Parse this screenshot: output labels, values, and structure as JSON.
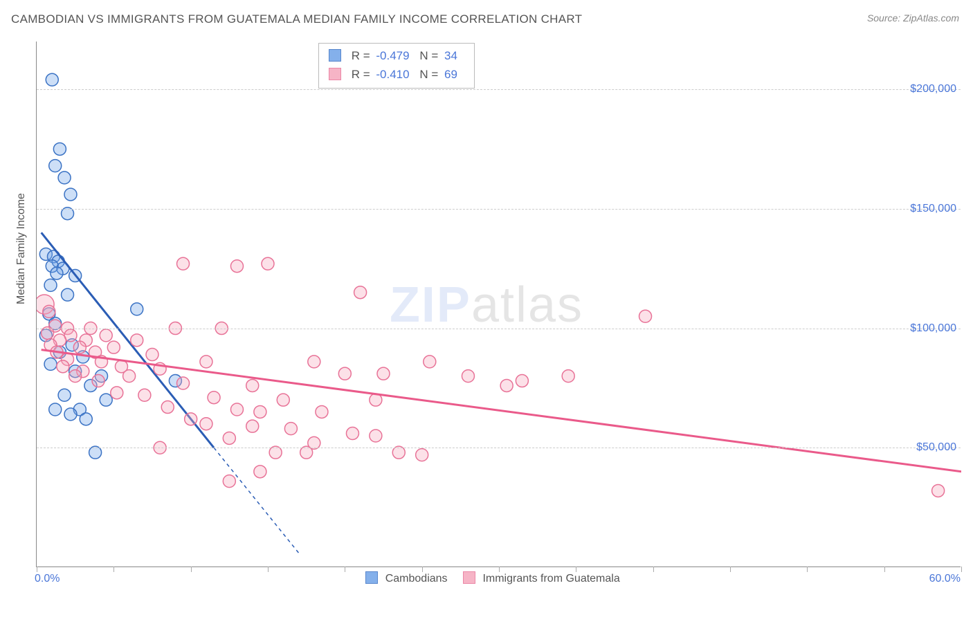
{
  "title": "CAMBODIAN VS IMMIGRANTS FROM GUATEMALA MEDIAN FAMILY INCOME CORRELATION CHART",
  "source": "Source: ZipAtlas.com",
  "y_axis_title": "Median Family Income",
  "watermark_zip": "ZIP",
  "watermark_atlas": "atlas",
  "x_min_label": "0.0%",
  "x_max_label": "60.0%",
  "chart": {
    "type": "scatter",
    "background_color": "#ffffff",
    "grid_color": "#cccccc",
    "axis_color": "#888888",
    "text_color": "#555555",
    "value_color": "#4a76d8",
    "xlim": [
      0,
      60
    ],
    "ylim": [
      0,
      220000
    ],
    "y_ticks": [
      50000,
      100000,
      150000,
      200000
    ],
    "y_tick_labels": [
      "$50,000",
      "$100,000",
      "$150,000",
      "$200,000"
    ],
    "x_tick_step": 5,
    "marker_radius": 9,
    "marker_fill_opacity": 0.35,
    "marker_stroke_width": 1.5,
    "trend_line_width": 3,
    "series": [
      {
        "name": "Cambodians",
        "color": "#6fa3e8",
        "stroke": "#3a72c4",
        "trend_color": "#2b5db5",
        "R": "-0.479",
        "N": "34",
        "trend_line": {
          "x1": 0.3,
          "y1": 140000,
          "x2": 11.5,
          "y2": 50000
        },
        "trend_extend_dashed": {
          "x1": 11.5,
          "y1": 50000,
          "x2": 17,
          "y2": 6000
        },
        "points": [
          {
            "x": 1.0,
            "y": 204000,
            "r": 9
          },
          {
            "x": 1.5,
            "y": 175000,
            "r": 9
          },
          {
            "x": 1.2,
            "y": 168000,
            "r": 9
          },
          {
            "x": 1.8,
            "y": 163000,
            "r": 9
          },
          {
            "x": 2.2,
            "y": 156000,
            "r": 9
          },
          {
            "x": 2.0,
            "y": 148000,
            "r": 9
          },
          {
            "x": 0.6,
            "y": 131000,
            "r": 9
          },
          {
            "x": 1.1,
            "y": 130000,
            "r": 9
          },
          {
            "x": 1.4,
            "y": 128000,
            "r": 9
          },
          {
            "x": 1.0,
            "y": 126000,
            "r": 9
          },
          {
            "x": 1.7,
            "y": 125000,
            "r": 9
          },
          {
            "x": 1.3,
            "y": 123000,
            "r": 9
          },
          {
            "x": 2.5,
            "y": 122000,
            "r": 9
          },
          {
            "x": 0.9,
            "y": 118000,
            "r": 9
          },
          {
            "x": 2.0,
            "y": 114000,
            "r": 9
          },
          {
            "x": 6.5,
            "y": 108000,
            "r": 9
          },
          {
            "x": 0.8,
            "y": 106000,
            "r": 9
          },
          {
            "x": 1.2,
            "y": 102000,
            "r": 9
          },
          {
            "x": 0.6,
            "y": 97000,
            "r": 9
          },
          {
            "x": 2.3,
            "y": 93000,
            "r": 9
          },
          {
            "x": 1.5,
            "y": 90000,
            "r": 9
          },
          {
            "x": 3.0,
            "y": 88000,
            "r": 9
          },
          {
            "x": 0.9,
            "y": 85000,
            "r": 9
          },
          {
            "x": 2.5,
            "y": 82000,
            "r": 9
          },
          {
            "x": 4.2,
            "y": 80000,
            "r": 9
          },
          {
            "x": 9.0,
            "y": 78000,
            "r": 9
          },
          {
            "x": 3.5,
            "y": 76000,
            "r": 9
          },
          {
            "x": 1.8,
            "y": 72000,
            "r": 9
          },
          {
            "x": 4.5,
            "y": 70000,
            "r": 9
          },
          {
            "x": 1.2,
            "y": 66000,
            "r": 9
          },
          {
            "x": 2.8,
            "y": 66000,
            "r": 9
          },
          {
            "x": 2.2,
            "y": 64000,
            "r": 9
          },
          {
            "x": 3.2,
            "y": 62000,
            "r": 9
          },
          {
            "x": 3.8,
            "y": 48000,
            "r": 9
          }
        ]
      },
      {
        "name": "Immigrants from Guatemala",
        "color": "#f5a8bd",
        "stroke": "#e87297",
        "trend_color": "#ea5a8a",
        "R": "-0.410",
        "N": "69",
        "trend_line": {
          "x1": 0.3,
          "y1": 91000,
          "x2": 60,
          "y2": 40000
        },
        "points": [
          {
            "x": 9.5,
            "y": 127000,
            "r": 9
          },
          {
            "x": 15.0,
            "y": 127000,
            "r": 9
          },
          {
            "x": 13.0,
            "y": 126000,
            "r": 9
          },
          {
            "x": 21.0,
            "y": 115000,
            "r": 9
          },
          {
            "x": 0.5,
            "y": 110000,
            "r": 14
          },
          {
            "x": 0.8,
            "y": 107000,
            "r": 9
          },
          {
            "x": 39.5,
            "y": 105000,
            "r": 9
          },
          {
            "x": 1.2,
            "y": 101000,
            "r": 9
          },
          {
            "x": 2.0,
            "y": 100000,
            "r": 9
          },
          {
            "x": 3.5,
            "y": 100000,
            "r": 9
          },
          {
            "x": 9.0,
            "y": 100000,
            "r": 9
          },
          {
            "x": 12.0,
            "y": 100000,
            "r": 9
          },
          {
            "x": 0.7,
            "y": 98000,
            "r": 9
          },
          {
            "x": 2.2,
            "y": 97000,
            "r": 9
          },
          {
            "x": 4.5,
            "y": 97000,
            "r": 9
          },
          {
            "x": 1.5,
            "y": 95000,
            "r": 9
          },
          {
            "x": 3.2,
            "y": 95000,
            "r": 9
          },
          {
            "x": 6.5,
            "y": 95000,
            "r": 9
          },
          {
            "x": 0.9,
            "y": 93000,
            "r": 9
          },
          {
            "x": 2.8,
            "y": 92000,
            "r": 9
          },
          {
            "x": 5.0,
            "y": 92000,
            "r": 9
          },
          {
            "x": 1.3,
            "y": 90000,
            "r": 9
          },
          {
            "x": 3.8,
            "y": 90000,
            "r": 9
          },
          {
            "x": 7.5,
            "y": 89000,
            "r": 9
          },
          {
            "x": 2.0,
            "y": 87000,
            "r": 9
          },
          {
            "x": 4.2,
            "y": 86000,
            "r": 9
          },
          {
            "x": 11.0,
            "y": 86000,
            "r": 9
          },
          {
            "x": 18.0,
            "y": 86000,
            "r": 9
          },
          {
            "x": 25.5,
            "y": 86000,
            "r": 9
          },
          {
            "x": 1.7,
            "y": 84000,
            "r": 9
          },
          {
            "x": 5.5,
            "y": 84000,
            "r": 9
          },
          {
            "x": 8.0,
            "y": 83000,
            "r": 9
          },
          {
            "x": 3.0,
            "y": 82000,
            "r": 9
          },
          {
            "x": 20.0,
            "y": 81000,
            "r": 9
          },
          {
            "x": 22.5,
            "y": 81000,
            "r": 9
          },
          {
            "x": 2.5,
            "y": 80000,
            "r": 9
          },
          {
            "x": 6.0,
            "y": 80000,
            "r": 9
          },
          {
            "x": 28.0,
            "y": 80000,
            "r": 9
          },
          {
            "x": 34.5,
            "y": 80000,
            "r": 9
          },
          {
            "x": 4.0,
            "y": 78000,
            "r": 9
          },
          {
            "x": 9.5,
            "y": 77000,
            "r": 9
          },
          {
            "x": 14.0,
            "y": 76000,
            "r": 9
          },
          {
            "x": 30.5,
            "y": 76000,
            "r": 9
          },
          {
            "x": 31.5,
            "y": 78000,
            "r": 9
          },
          {
            "x": 5.2,
            "y": 73000,
            "r": 9
          },
          {
            "x": 7.0,
            "y": 72000,
            "r": 9
          },
          {
            "x": 11.5,
            "y": 71000,
            "r": 9
          },
          {
            "x": 16.0,
            "y": 70000,
            "r": 9
          },
          {
            "x": 22.0,
            "y": 70000,
            "r": 9
          },
          {
            "x": 8.5,
            "y": 67000,
            "r": 9
          },
          {
            "x": 13.0,
            "y": 66000,
            "r": 9
          },
          {
            "x": 14.5,
            "y": 65000,
            "r": 9
          },
          {
            "x": 18.5,
            "y": 65000,
            "r": 9
          },
          {
            "x": 10.0,
            "y": 62000,
            "r": 9
          },
          {
            "x": 11.0,
            "y": 60000,
            "r": 9
          },
          {
            "x": 14.0,
            "y": 59000,
            "r": 9
          },
          {
            "x": 16.5,
            "y": 58000,
            "r": 9
          },
          {
            "x": 20.5,
            "y": 56000,
            "r": 9
          },
          {
            "x": 22.0,
            "y": 55000,
            "r": 9
          },
          {
            "x": 12.5,
            "y": 54000,
            "r": 9
          },
          {
            "x": 18.0,
            "y": 52000,
            "r": 9
          },
          {
            "x": 8.0,
            "y": 50000,
            "r": 9
          },
          {
            "x": 15.5,
            "y": 48000,
            "r": 9
          },
          {
            "x": 17.5,
            "y": 48000,
            "r": 9
          },
          {
            "x": 23.5,
            "y": 48000,
            "r": 9
          },
          {
            "x": 25.0,
            "y": 47000,
            "r": 9
          },
          {
            "x": 14.5,
            "y": 40000,
            "r": 9
          },
          {
            "x": 12.5,
            "y": 36000,
            "r": 9
          },
          {
            "x": 58.5,
            "y": 32000,
            "r": 9
          }
        ]
      }
    ]
  }
}
